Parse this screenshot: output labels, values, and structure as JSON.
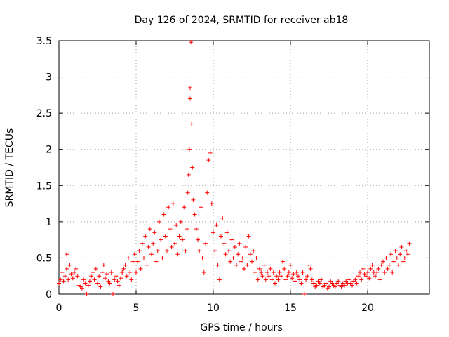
{
  "chart_data": {
    "type": "scatter",
    "title": "Day 126 of 2024, SRMTID for receiver ab18",
    "xlabel": "GPS time / hours",
    "ylabel": "SRMTID / TECUs",
    "xlim": [
      0,
      24
    ],
    "ylim": [
      0,
      3.5
    ],
    "x_ticks": [
      0,
      5,
      10,
      15,
      20
    ],
    "y_ticks": [
      0,
      0.5,
      1,
      1.5,
      2,
      2.5,
      3,
      3.5
    ],
    "x_tick_labels": [
      "0",
      "5",
      "10",
      "15",
      "20"
    ],
    "y_tick_labels": [
      "0",
      "0.5",
      "1",
      "1.5",
      "2",
      "2.5",
      "3",
      "3.5"
    ],
    "grid": true,
    "marker": "+",
    "series": [
      {
        "name": "SRMTID ab18",
        "color": "#ff0000",
        "x": [
          0.0,
          0.1,
          0.2,
          0.3,
          0.4,
          0.5,
          0.5,
          0.6,
          0.7,
          0.8,
          0.9,
          1.0,
          1.1,
          1.2,
          1.3,
          1.4,
          1.5,
          1.6,
          1.7,
          1.8,
          1.9,
          2.0,
          2.1,
          2.2,
          2.3,
          2.4,
          2.5,
          2.6,
          2.7,
          2.8,
          2.9,
          3.0,
          3.1,
          3.2,
          3.3,
          3.4,
          3.5,
          3.6,
          3.7,
          3.8,
          3.9,
          4.0,
          4.1,
          4.2,
          4.3,
          4.4,
          4.5,
          4.6,
          4.7,
          4.8,
          4.9,
          5.0,
          5.1,
          5.2,
          5.3,
          5.4,
          5.5,
          5.6,
          5.7,
          5.8,
          5.9,
          6.0,
          6.1,
          6.2,
          6.3,
          6.4,
          6.5,
          6.6,
          6.7,
          6.8,
          6.9,
          7.0,
          7.1,
          7.2,
          7.3,
          7.4,
          7.5,
          7.6,
          7.7,
          7.8,
          7.9,
          8.0,
          8.1,
          8.2,
          8.3,
          8.35,
          8.4,
          8.45,
          8.5,
          8.5,
          8.55,
          8.6,
          8.65,
          8.7,
          8.8,
          8.9,
          9.0,
          9.1,
          9.2,
          9.3,
          9.4,
          9.5,
          9.6,
          9.7,
          9.8,
          9.9,
          10.0,
          10.1,
          10.2,
          10.3,
          10.4,
          10.5,
          10.6,
          10.7,
          10.8,
          10.9,
          11.0,
          11.1,
          11.2,
          11.3,
          11.4,
          11.5,
          11.6,
          11.7,
          11.8,
          11.9,
          12.0,
          12.1,
          12.2,
          12.3,
          12.4,
          12.5,
          12.6,
          12.7,
          12.8,
          12.9,
          13.0,
          13.1,
          13.2,
          13.3,
          13.4,
          13.5,
          13.6,
          13.7,
          13.8,
          13.9,
          14.0,
          14.1,
          14.2,
          14.3,
          14.4,
          14.5,
          14.6,
          14.7,
          14.8,
          14.9,
          15.0,
          15.1,
          15.2,
          15.3,
          15.4,
          15.5,
          15.6,
          15.7,
          15.8,
          15.9,
          16.0,
          16.1,
          16.2,
          16.3,
          16.4,
          16.5,
          16.6,
          16.7,
          16.8,
          16.9,
          17.0,
          17.1,
          17.2,
          17.3,
          17.4,
          17.5,
          17.6,
          17.7,
          17.8,
          17.9,
          18.0,
          18.1,
          18.2,
          18.3,
          18.4,
          18.5,
          18.6,
          18.7,
          18.8,
          18.9,
          19.0,
          19.1,
          19.2,
          19.3,
          19.4,
          19.5,
          19.6,
          19.7,
          19.8,
          19.9,
          20.0,
          20.1,
          20.2,
          20.3,
          20.4,
          20.5,
          20.6,
          20.7,
          20.8,
          20.9,
          21.0,
          21.1,
          21.2,
          21.3,
          21.4,
          21.5,
          21.6,
          21.7,
          21.8,
          21.9,
          22.0,
          22.1,
          22.2,
          22.3,
          22.4,
          22.5,
          22.6,
          22.7
        ],
        "y": [
          0.15,
          0.2,
          0.3,
          0.18,
          0.25,
          0.55,
          0.35,
          0.2,
          0.4,
          0.28,
          0.22,
          0.3,
          0.35,
          0.25,
          0.12,
          0.1,
          0.08,
          0.2,
          0.15,
          0.0,
          0.12,
          0.18,
          0.25,
          0.3,
          0.2,
          0.35,
          0.15,
          0.25,
          0.1,
          0.3,
          0.4,
          0.22,
          0.28,
          0.18,
          0.15,
          0.3,
          0.0,
          0.2,
          0.25,
          0.18,
          0.12,
          0.22,
          0.3,
          0.35,
          0.4,
          0.25,
          0.5,
          0.3,
          0.2,
          0.45,
          0.55,
          0.3,
          0.45,
          0.6,
          0.35,
          0.7,
          0.5,
          0.8,
          0.4,
          0.65,
          0.9,
          0.55,
          0.7,
          0.85,
          0.45,
          0.6,
          1.0,
          0.75,
          0.5,
          1.1,
          0.8,
          0.6,
          1.2,
          0.9,
          0.65,
          1.25,
          0.7,
          0.95,
          0.55,
          0.8,
          1.0,
          0.75,
          1.2,
          0.6,
          0.9,
          1.4,
          1.65,
          2.0,
          2.7,
          2.85,
          3.48,
          2.35,
          1.75,
          1.3,
          1.1,
          0.9,
          0.75,
          0.6,
          1.2,
          0.5,
          0.3,
          0.7,
          1.4,
          1.85,
          1.95,
          1.25,
          0.85,
          0.6,
          0.95,
          0.4,
          0.2,
          0.8,
          1.05,
          0.7,
          0.55,
          0.85,
          0.6,
          0.45,
          0.75,
          0.5,
          0.65,
          0.4,
          0.55,
          0.7,
          0.45,
          0.5,
          0.35,
          0.65,
          0.4,
          0.8,
          0.55,
          0.45,
          0.6,
          0.3,
          0.5,
          0.2,
          0.35,
          0.3,
          0.25,
          0.4,
          0.2,
          0.3,
          0.25,
          0.35,
          0.2,
          0.3,
          0.15,
          0.25,
          0.2,
          0.3,
          0.25,
          0.45,
          0.35,
          0.2,
          0.25,
          0.3,
          0.4,
          0.22,
          0.28,
          0.18,
          0.3,
          0.25,
          0.2,
          0.15,
          0.3,
          0.0,
          0.2,
          0.25,
          0.4,
          0.35,
          0.2,
          0.15,
          0.1,
          0.12,
          0.18,
          0.15,
          0.2,
          0.1,
          0.12,
          0.15,
          0.08,
          0.1,
          0.18,
          0.15,
          0.12,
          0.1,
          0.15,
          0.18,
          0.12,
          0.1,
          0.15,
          0.12,
          0.18,
          0.15,
          0.2,
          0.15,
          0.12,
          0.18,
          0.2,
          0.15,
          0.25,
          0.3,
          0.2,
          0.35,
          0.28,
          0.25,
          0.3,
          0.22,
          0.35,
          0.4,
          0.3,
          0.25,
          0.3,
          0.35,
          0.2,
          0.4,
          0.45,
          0.3,
          0.5,
          0.35,
          0.4,
          0.55,
          0.3,
          0.45,
          0.6,
          0.5,
          0.4,
          0.55,
          0.65,
          0.45,
          0.5,
          0.6,
          0.55,
          0.7
        ]
      }
    ]
  }
}
